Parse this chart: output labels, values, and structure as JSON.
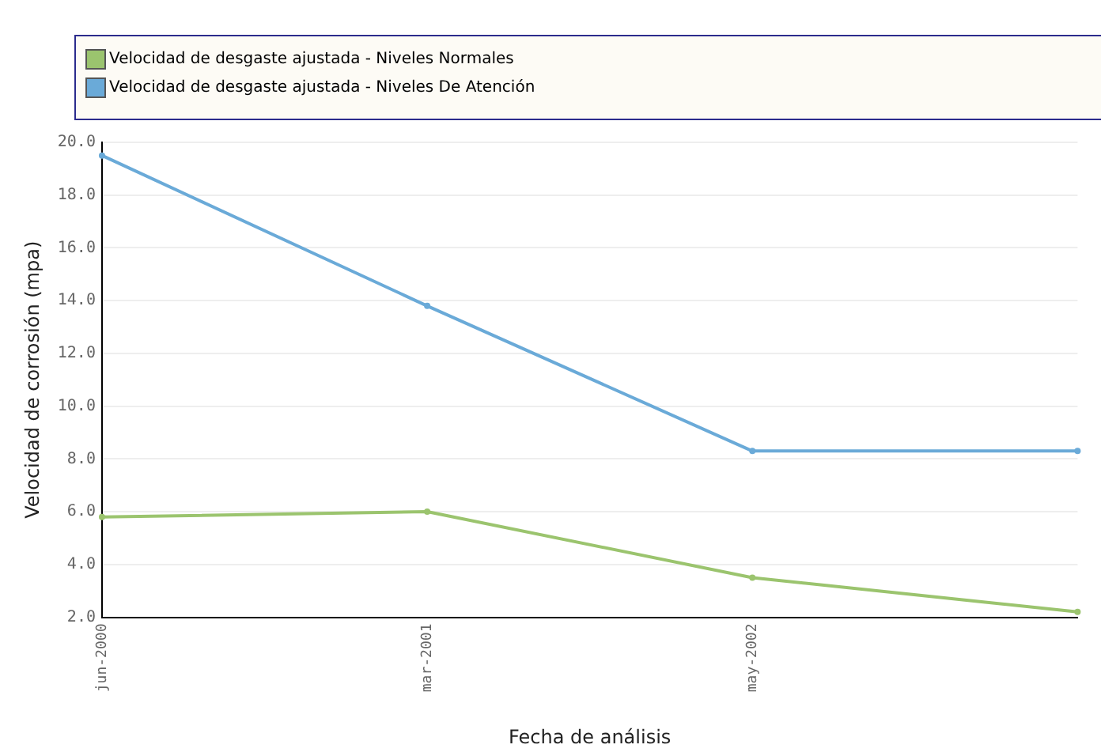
{
  "chart_data": {
    "type": "line",
    "xlabel": "Fecha de análisis",
    "ylabel": "Velocidad de corrosión (mpa)",
    "categories": [
      "jun-2000",
      "mar-2001",
      "may-2002",
      null
    ],
    "series": [
      {
        "name": "Velocidad de desgaste ajustada - Niveles Normales",
        "color": "#9bc46e",
        "values": [
          5.8,
          6.0,
          3.5,
          2.2
        ]
      },
      {
        "name": "Velocidad de desgaste ajustada - Niveles De Atención",
        "color": "#6aaad8",
        "values": [
          19.5,
          13.8,
          8.3,
          8.3
        ]
      }
    ],
    "ylim": [
      2,
      20
    ],
    "yticks": [
      {
        "value": 2,
        "label": "2.0"
      },
      {
        "value": 4,
        "label": "4.0"
      },
      {
        "value": 6,
        "label": "6.0"
      },
      {
        "value": 8,
        "label": "8.0"
      },
      {
        "value": 10,
        "label": "10.0"
      },
      {
        "value": 12,
        "label": "12.0"
      },
      {
        "value": 14,
        "label": "14.0"
      },
      {
        "value": 16,
        "label": "16.0"
      },
      {
        "value": 18,
        "label": "18.0"
      },
      {
        "value": 20,
        "label": "20.0"
      }
    ],
    "grid": "y",
    "legend": "top",
    "marker": "circle",
    "line_style": "solid"
  }
}
